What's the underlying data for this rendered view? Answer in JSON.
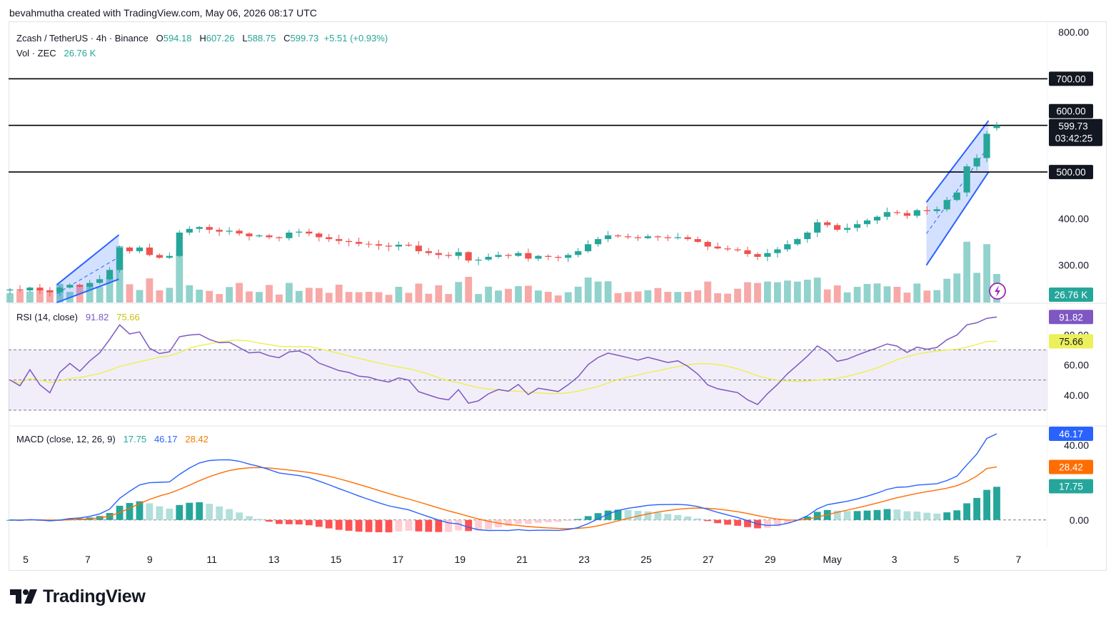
{
  "header": {
    "credit": "bevahmutha created with TradingView.com, May 06, 2026 08:17 UTC"
  },
  "main_legend": {
    "symbol": "Zcash / TetherUS · 4h · Binance",
    "o_label": "O",
    "o": "594.18",
    "h_label": "H",
    "h": "607.26",
    "l_label": "L",
    "l": "588.75",
    "c_label": "C",
    "c": "599.73",
    "change": "+5.51 (+0.93%)"
  },
  "vol_legend": {
    "label": "Vol · ZEC",
    "value": "26.76 K"
  },
  "rsi_legend": {
    "label": "RSI (14, close)",
    "rsi": "91.82",
    "ma": "75.66"
  },
  "macd_legend": {
    "label": "MACD (close, 12, 26, 9)",
    "hist": "17.75",
    "macd": "46.17",
    "signal": "28.42"
  },
  "price_axis": {
    "ticks": [
      "800.00",
      "400.00",
      "300.00"
    ]
  },
  "rsi_axis": {
    "ticks": [
      "80.00",
      "60.00",
      "40.00"
    ]
  },
  "macd_axis": {
    "ticks": [
      "40.00",
      "0.00"
    ]
  },
  "badges": {
    "h700": "700.00",
    "h600": "600.00",
    "last_price": "599.73",
    "countdown": "03:42:25",
    "h500": "500.00",
    "volume": "26.76 K",
    "rsi": "91.82",
    "rsi_ma": "75.66",
    "macd": "46.17",
    "signal": "28.42",
    "hist": "17.75"
  },
  "time_axis": [
    "5",
    "7",
    "9",
    "11",
    "13",
    "15",
    "17",
    "19",
    "21",
    "23",
    "25",
    "27",
    "29",
    "May",
    "3",
    "5",
    "7"
  ],
  "logo": {
    "text": "TradingView"
  },
  "colors": {
    "up": "#26a69a",
    "down": "#ef5350",
    "rsi": "#7e57c2",
    "rsi_ma": "#ecf05a",
    "macd": "#2962ff",
    "signal": "#ff6d00",
    "channel": "#2962ff",
    "line": "#000000"
  },
  "icons": {
    "lightning": "lightning-icon",
    "logo": "tradingview-logo-icon"
  },
  "chart_data": {
    "type": "candlestick",
    "symbol": "ZECUSDT",
    "interval": "4h",
    "x_range": [
      "Apr 4",
      "May 7"
    ],
    "price_ylim": [
      220,
      820
    ],
    "horizontal_lines": [
      500,
      600,
      700
    ],
    "channels": [
      {
        "from": "Apr 6",
        "to": "Apr 8",
        "lower": [
          220,
          270
        ],
        "upper": [
          258,
          365
        ]
      },
      {
        "from": "May 4",
        "to": "May 6",
        "lower": [
          300,
          500
        ],
        "upper": [
          435,
          610
        ]
      }
    ],
    "closes": [
      248,
      246,
      252,
      246,
      242,
      252,
      258,
      254,
      262,
      270,
      290,
      338,
      330,
      338,
      322,
      316,
      320,
      370,
      378,
      382,
      376,
      372,
      374,
      368,
      362,
      364,
      360,
      358,
      370,
      372,
      368,
      360,
      356,
      352,
      350,
      346,
      345,
      342,
      340,
      344,
      342,
      330,
      326,
      322,
      320,
      328,
      310,
      312,
      318,
      322,
      320,
      326,
      314,
      320,
      318,
      316,
      322,
      330,
      345,
      356,
      364,
      362,
      360,
      358,
      362,
      360,
      358,
      360,
      356,
      350,
      340,
      336,
      334,
      332,
      324,
      318,
      326,
      334,
      345,
      356,
      370,
      392,
      386,
      376,
      380,
      388,
      396,
      404,
      414,
      412,
      406,
      418,
      416,
      420,
      440,
      456,
      512,
      530,
      582,
      600
    ],
    "last": {
      "open": 594.18,
      "high": 607.26,
      "low": 588.75,
      "close": 599.73,
      "change": 5.51,
      "change_pct": 0.93
    },
    "volume_last_k": 26.76,
    "rsi": {
      "length": 14,
      "last": 91.82,
      "ma_last": 75.66,
      "bands": [
        30,
        50,
        70
      ],
      "ylim": [
        20,
        100
      ]
    },
    "macd": {
      "fast": 12,
      "slow": 26,
      "signal": 9,
      "macd_last": 46.17,
      "signal_last": 28.42,
      "hist_last": 17.75,
      "ylim": [
        -15,
        50
      ]
    }
  }
}
